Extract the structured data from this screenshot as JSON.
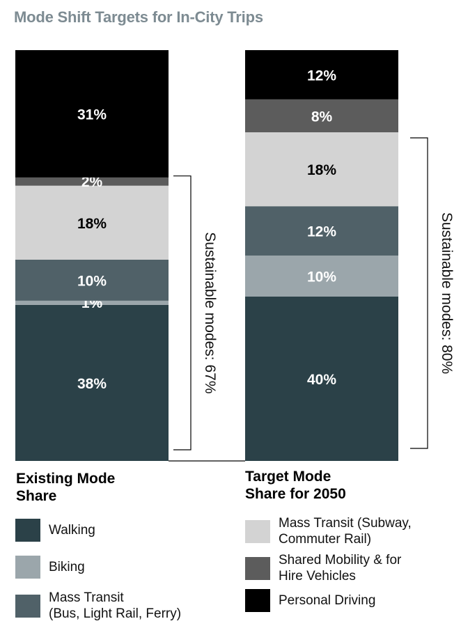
{
  "title": "Mode Shift Targets for In-City Trips",
  "colors": {
    "walking": "#2b4148",
    "biking": "#9ba6ab",
    "mass_transit_bus": "#506168",
    "mass_transit_subway": "#d3d3d3",
    "shared_mobility": "#5c5c5c",
    "personal_driving": "#000000"
  },
  "chart_data": {
    "type": "bar",
    "stacked": true,
    "categories": [
      "Existing Mode Share",
      "Target Mode Share for 2050"
    ],
    "series": [
      {
        "name": "Walking",
        "values": [
          38,
          40
        ],
        "labels": [
          "38%",
          "40%"
        ]
      },
      {
        "name": "Biking",
        "values": [
          1,
          10
        ],
        "labels": [
          "1%",
          "10%"
        ]
      },
      {
        "name": "Mass Transit (Bus, Light Rail, Ferry)",
        "values": [
          10,
          12
        ],
        "labels": [
          "10%",
          "12%"
        ]
      },
      {
        "name": "Mass Transit (Subway, Commuter Rail)",
        "values": [
          18,
          18
        ],
        "labels": [
          "18%",
          "18%"
        ]
      },
      {
        "name": "Shared Mobility & for Hire Vehicles",
        "values": [
          2,
          8
        ],
        "labels": [
          "2%",
          "8%"
        ]
      },
      {
        "name": "Personal Driving",
        "values": [
          31,
          12
        ],
        "labels": [
          "31%",
          "12%"
        ]
      }
    ],
    "annotations": [
      "Sustainable modes: 67%",
      "Sustainable modes: 80%"
    ],
    "bar_labels": [
      "Existing Mode\nShare",
      "Target Mode\nShare for 2050"
    ]
  },
  "legend": {
    "left": [
      {
        "label": "Walking",
        "color_key": "walking"
      },
      {
        "label": "Biking",
        "color_key": "biking"
      },
      {
        "label": "Mass Transit\n(Bus, Light Rail, Ferry)",
        "color_key": "mass_transit_bus"
      }
    ],
    "right": [
      {
        "label": "Mass Transit (Subway,\nCommuter Rail)",
        "color_key": "mass_transit_subway"
      },
      {
        "label": "Shared Mobility & for\nHire Vehicles",
        "color_key": "shared_mobility"
      },
      {
        "label": "Personal Driving",
        "color_key": "personal_driving"
      }
    ]
  }
}
